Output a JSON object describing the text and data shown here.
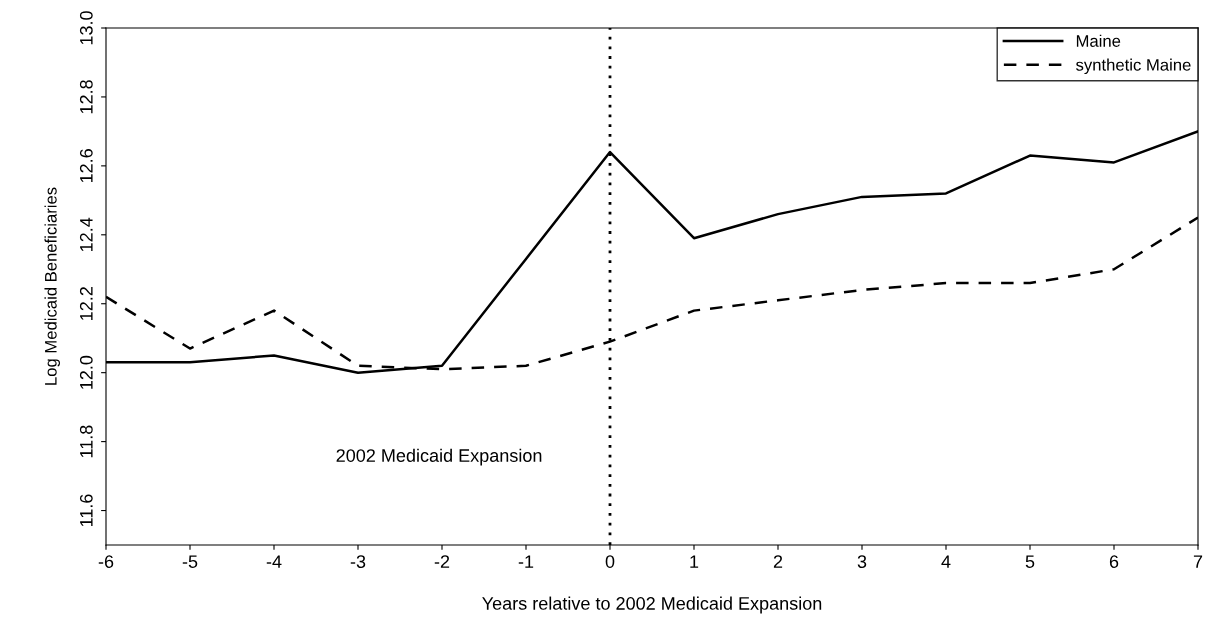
{
  "chart_data": {
    "type": "line",
    "xlabel": "Years relative to 2002 Medicaid Expansion",
    "ylabel": "Log Medicaid Beneficiaries",
    "x": [
      -6,
      -5,
      -4,
      -3,
      -2,
      -1,
      0,
      1,
      2,
      3,
      4,
      5,
      6,
      7
    ],
    "series": [
      {
        "name": "Maine",
        "color": "#000000",
        "line_style": "solid",
        "values": [
          12.03,
          12.03,
          12.05,
          12.0,
          12.02,
          12.33,
          12.64,
          12.39,
          12.46,
          12.51,
          12.52,
          12.63,
          12.61,
          12.7
        ]
      },
      {
        "name": "synthetic Maine",
        "color": "#000000",
        "line_style": "dashed",
        "values": [
          12.22,
          12.07,
          12.18,
          12.02,
          12.01,
          12.02,
          12.09,
          12.18,
          12.21,
          12.24,
          12.26,
          12.26,
          12.3,
          12.45
        ]
      }
    ],
    "ref_lines": [
      {
        "axis": "x",
        "value": 0,
        "color": "#000000",
        "line_style": "dotted"
      }
    ],
    "annotations": [
      "2002 Medicaid Expansion"
    ],
    "xlim": [
      -6,
      7
    ],
    "xticks": [
      -6,
      -5,
      -4,
      -3,
      -2,
      -1,
      0,
      1,
      2,
      3,
      4,
      5,
      6,
      7
    ],
    "ylim": [
      11.5,
      13.0
    ],
    "yticks": [
      11.6,
      11.8,
      {
        "value": 12,
        "label": "12.0"
      },
      12.2,
      12.4,
      12.6,
      12.8,
      {
        "value": 13,
        "label": "13.0"
      }
    ],
    "grid": false,
    "legend": "top right",
    "marker": "none"
  }
}
